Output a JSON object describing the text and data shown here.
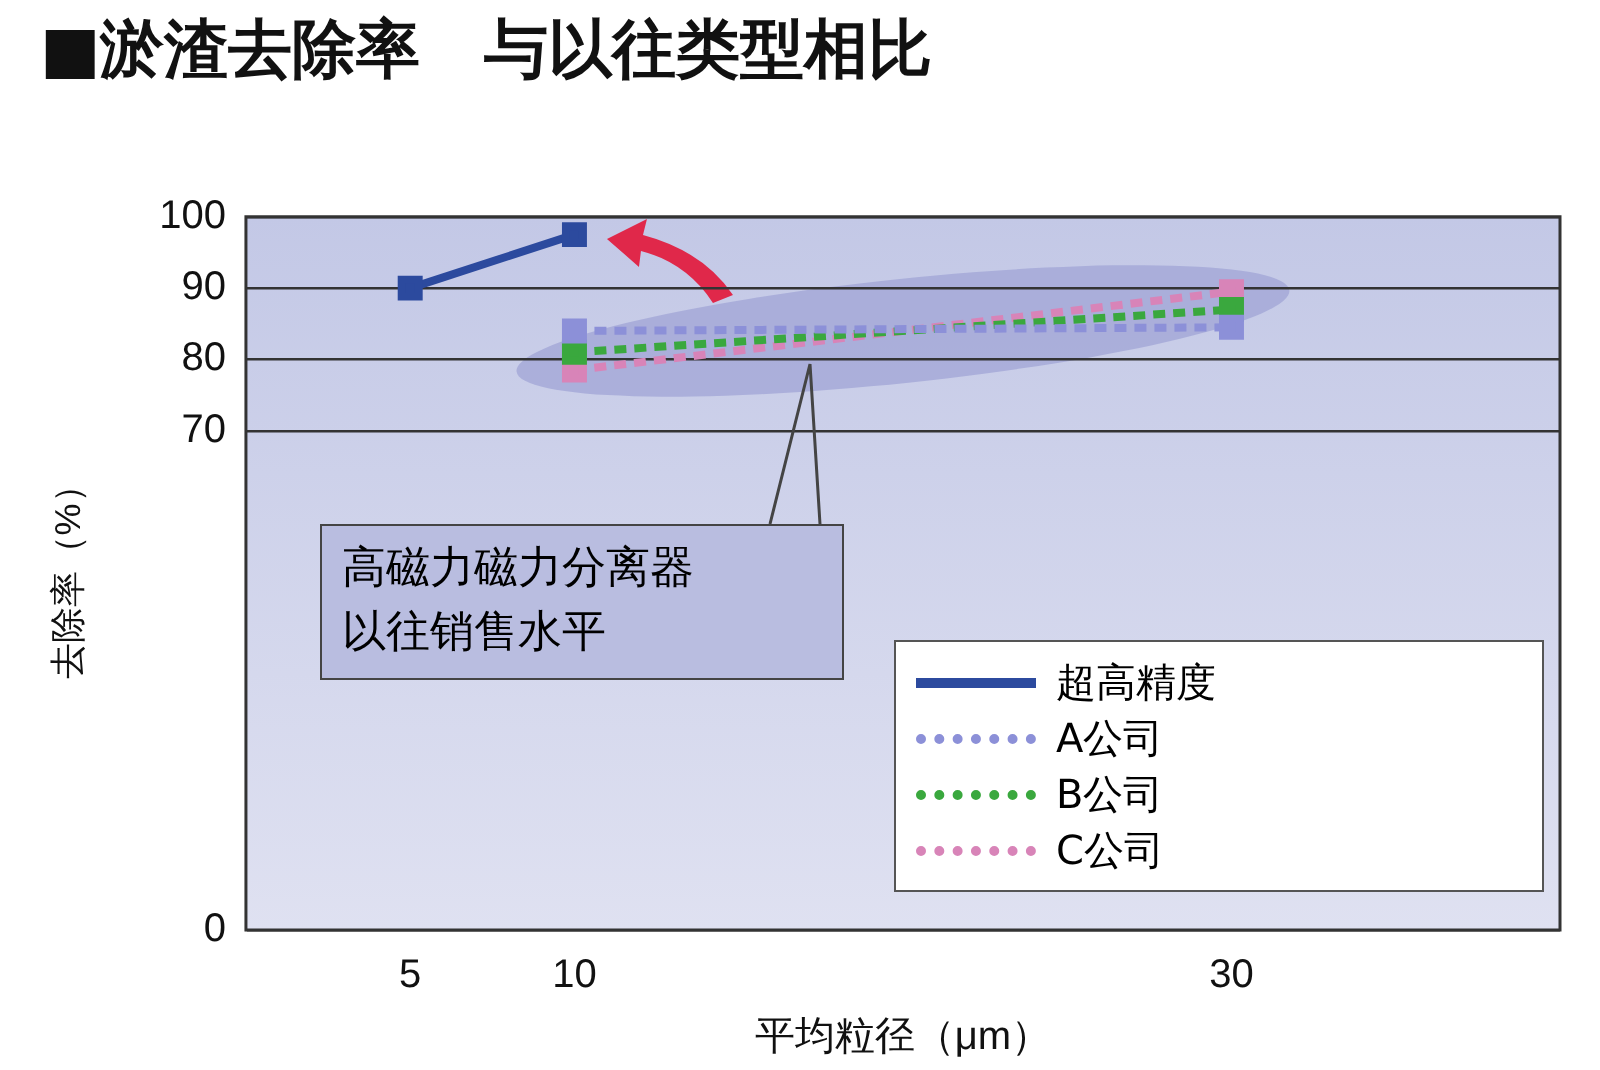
{
  "chart_data": {
    "type": "line",
    "title": "■淤渣去除率　与以往类型相比",
    "xlabel": "平均粒径（μm）",
    "ylabel": "去除率（%）",
    "xlim": [
      0,
      40
    ],
    "xticks": [
      5,
      10,
      30
    ],
    "ylim": [
      0,
      100
    ],
    "yticks": [
      0,
      70,
      80,
      90,
      100
    ],
    "grid": "y",
    "legend": "bottom right",
    "marker": "square",
    "annotations": [
      "高磁力磁力分离器以往销售水平"
    ],
    "series": [
      {
        "name": "超高精度",
        "color": "#2c4a9e",
        "x": [
          5,
          10
        ],
        "values": [
          90,
          97.5
        ],
        "line_style": "solid"
      },
      {
        "name": "A公司",
        "color": "#8c90d8",
        "x": [
          10,
          30
        ],
        "values": [
          84,
          84.5
        ],
        "line_style": "dotted"
      },
      {
        "name": "B公司",
        "color": "#3aa83e",
        "x": [
          10,
          30
        ],
        "values": [
          81,
          87
        ],
        "line_style": "dotted"
      },
      {
        "name": "C公司",
        "color": "#d884b8",
        "x": [
          10,
          30
        ],
        "values": [
          78.5,
          89.5
        ],
        "line_style": "dotted"
      }
    ]
  }
}
